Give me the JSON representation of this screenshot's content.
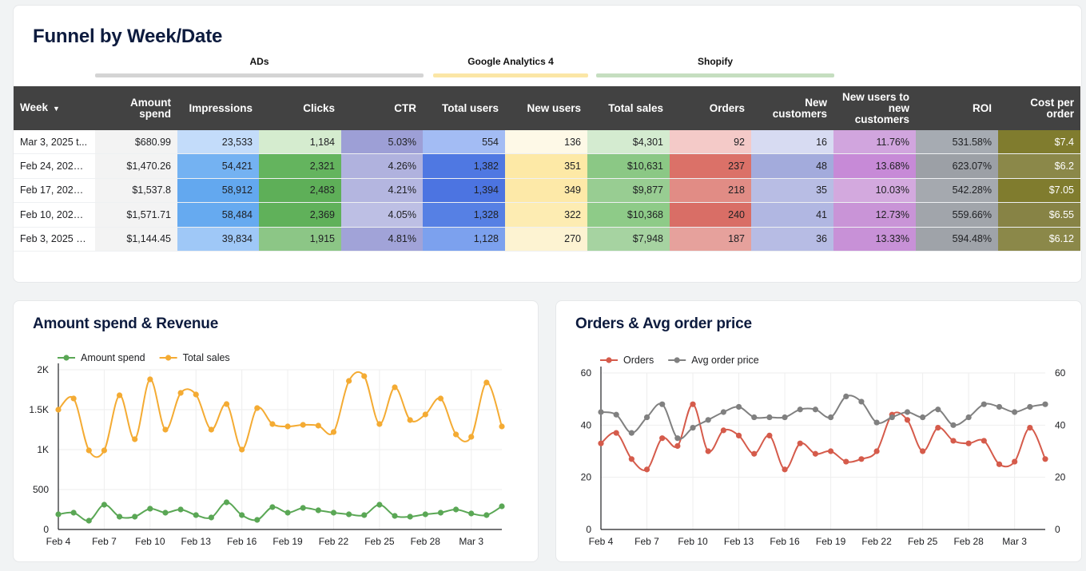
{
  "funnel": {
    "title": "Funnel by Week/Date",
    "groups": [
      {
        "label": "ADs",
        "color": "#d4d4d4"
      },
      {
        "label": "Google Analytics 4",
        "color": "#fbe6a6"
      },
      {
        "label": "Shopify",
        "color": "#c5dec0"
      }
    ],
    "sort_icon": "sort-desc-icon",
    "columns": [
      "Week",
      "Amount spend",
      "Impressions",
      "Clicks",
      "CTR",
      "Total users",
      "New users",
      "Total sales",
      "Orders",
      "New customers",
      "New users to new customers",
      "ROI",
      "Cost per order"
    ],
    "rows": [
      [
        "Mar 3, 2025 t...",
        "$680.99",
        "23,533",
        "1,184",
        "5.03%",
        "554",
        "136",
        "$4,301",
        "92",
        "16",
        "11.76%",
        "531.58%",
        "$7.4"
      ],
      [
        "Feb 24, 2025 t...",
        "$1,470.26",
        "54,421",
        "2,321",
        "4.26%",
        "1,382",
        "351",
        "$10,631",
        "237",
        "48",
        "13.68%",
        "623.07%",
        "$6.2"
      ],
      [
        "Feb 17, 2025 t...",
        "$1,537.8",
        "58,912",
        "2,483",
        "4.21%",
        "1,394",
        "349",
        "$9,877",
        "218",
        "35",
        "10.03%",
        "542.28%",
        "$7.05"
      ],
      [
        "Feb 10, 2025 t...",
        "$1,571.71",
        "58,484",
        "2,369",
        "4.05%",
        "1,328",
        "322",
        "$10,368",
        "240",
        "41",
        "12.73%",
        "559.66%",
        "$6.55"
      ],
      [
        "Feb 3, 2025 to...",
        "$1,144.45",
        "39,834",
        "1,915",
        "4.81%",
        "1,128",
        "270",
        "$7,948",
        "187",
        "36",
        "13.33%",
        "594.48%",
        "$6.12"
      ]
    ],
    "cell_colors": [
      [
        "#ffffff",
        "#f3f3f3",
        "#c3dcfa",
        "#d5eccf",
        "#9d9fd6",
        "#a3bcf4",
        "#fef9e7",
        "#d4ebd0",
        "#f4cac8",
        "#d7dbf2",
        "#d1a5de",
        "#a6abb2",
        "#807c2e"
      ],
      [
        "#ffffff",
        "#f3f3f3",
        "#74b2f2",
        "#64b45e",
        "#b0b2de",
        "#4f78e2",
        "#fde9a6",
        "#8bc885",
        "#db7168",
        "#a3abdc",
        "#c78ad7",
        "#9ca0a6",
        "#8b8849"
      ],
      [
        "#ffffff",
        "#f3f3f3",
        "#63a8ef",
        "#5eaf58",
        "#b4b6e0",
        "#4c74e1",
        "#fde9a8",
        "#98cd92",
        "#e18c85",
        "#b8bde4",
        "#d3a9de",
        "#a5a9af",
        "#807c2e"
      ],
      [
        "#ffffff",
        "#f3f3f3",
        "#66aaf0",
        "#60b15a",
        "#bdbfe4",
        "#5680e4",
        "#fdecb2",
        "#8ecb88",
        "#d96e66",
        "#b1b7e2",
        "#c994d7",
        "#a1a5ab",
        "#878345"
      ],
      [
        "#ffffff",
        "#f3f3f3",
        "#9fc8f7",
        "#8cc686",
        "#a1a3d8",
        "#7ca1ee",
        "#fdf3d2",
        "#a6d3a1",
        "#e6a19c",
        "#b7bce4",
        "#c891d7",
        "#9fa3a9",
        "#8b8849"
      ]
    ]
  },
  "chart_data": [
    {
      "type": "line",
      "title": "Amount spend & Revenue",
      "x": [
        "Feb 4",
        "Feb 5",
        "Feb 6",
        "Feb 7",
        "Feb 8",
        "Feb 9",
        "Feb 10",
        "Feb 11",
        "Feb 12",
        "Feb 13",
        "Feb 14",
        "Feb 15",
        "Feb 16",
        "Feb 17",
        "Feb 18",
        "Feb 19",
        "Feb 20",
        "Feb 21",
        "Feb 22",
        "Feb 23",
        "Feb 24",
        "Feb 25",
        "Feb 26",
        "Feb 27",
        "Feb 28",
        "Mar 1",
        "Mar 2",
        "Mar 3",
        "Mar 4",
        "Mar 5"
      ],
      "xticks": [
        "Feb 4",
        "Feb 7",
        "Feb 10",
        "Feb 13",
        "Feb 16",
        "Feb 19",
        "Feb 22",
        "Feb 25",
        "Feb 28",
        "Mar 3"
      ],
      "yticks": [
        "0",
        "500",
        "1K",
        "1.5K",
        "2K"
      ],
      "ylim": [
        0,
        2000
      ],
      "legend_position": "top-left",
      "series": [
        {
          "name": "Amount spend",
          "color": "#5aa755",
          "values": [
            190,
            210,
            110,
            310,
            160,
            160,
            260,
            210,
            250,
            180,
            150,
            340,
            180,
            120,
            280,
            210,
            270,
            240,
            210,
            190,
            180,
            310,
            170,
            160,
            190,
            210,
            250,
            200,
            180,
            290
          ]
        },
        {
          "name": "Total sales",
          "color": "#f4ab33",
          "values": [
            1500,
            1640,
            990,
            990,
            1680,
            1130,
            1880,
            1250,
            1710,
            1690,
            1250,
            1570,
            1000,
            1520,
            1320,
            1290,
            1310,
            1300,
            1220,
            1860,
            1920,
            1320,
            1780,
            1370,
            1440,
            1640,
            1190,
            1160,
            1840,
            1290
          ]
        }
      ]
    },
    {
      "type": "line",
      "title": "Orders & Avg order price",
      "x": [
        "Feb 4",
        "Feb 5",
        "Feb 6",
        "Feb 7",
        "Feb 8",
        "Feb 9",
        "Feb 10",
        "Feb 11",
        "Feb 12",
        "Feb 13",
        "Feb 14",
        "Feb 15",
        "Feb 16",
        "Feb 17",
        "Feb 18",
        "Feb 19",
        "Feb 20",
        "Feb 21",
        "Feb 22",
        "Feb 23",
        "Feb 24",
        "Feb 25",
        "Feb 26",
        "Feb 27",
        "Feb 28",
        "Mar 1",
        "Mar 2",
        "Mar 3",
        "Mar 4",
        "Mar 5"
      ],
      "xticks": [
        "Feb 4",
        "Feb 7",
        "Feb 10",
        "Feb 13",
        "Feb 16",
        "Feb 19",
        "Feb 22",
        "Feb 25",
        "Feb 28",
        "Mar 3"
      ],
      "yticks_left": [
        "0",
        "20",
        "40",
        "60"
      ],
      "yticks_right": [
        "0",
        "20",
        "40",
        "60"
      ],
      "ylim": [
        0,
        60
      ],
      "legend_position": "top-left",
      "series": [
        {
          "name": "Orders",
          "color": "#d55b4b",
          "axis": "left",
          "values": [
            33,
            37,
            27,
            23,
            35,
            32,
            48,
            30,
            38,
            36,
            29,
            36,
            23,
            33,
            29,
            30,
            26,
            27,
            30,
            44,
            42,
            30,
            39,
            34,
            33,
            34,
            25,
            26,
            39,
            27
          ]
        },
        {
          "name": "Avg order price",
          "color": "#808080",
          "axis": "right",
          "values": [
            45,
            44,
            37,
            43,
            48,
            35,
            39,
            42,
            45,
            47,
            43,
            43,
            43,
            46,
            46,
            43,
            51,
            49,
            41,
            43,
            45,
            43,
            46,
            40,
            43,
            48,
            47,
            45,
            47,
            48
          ]
        }
      ]
    }
  ]
}
